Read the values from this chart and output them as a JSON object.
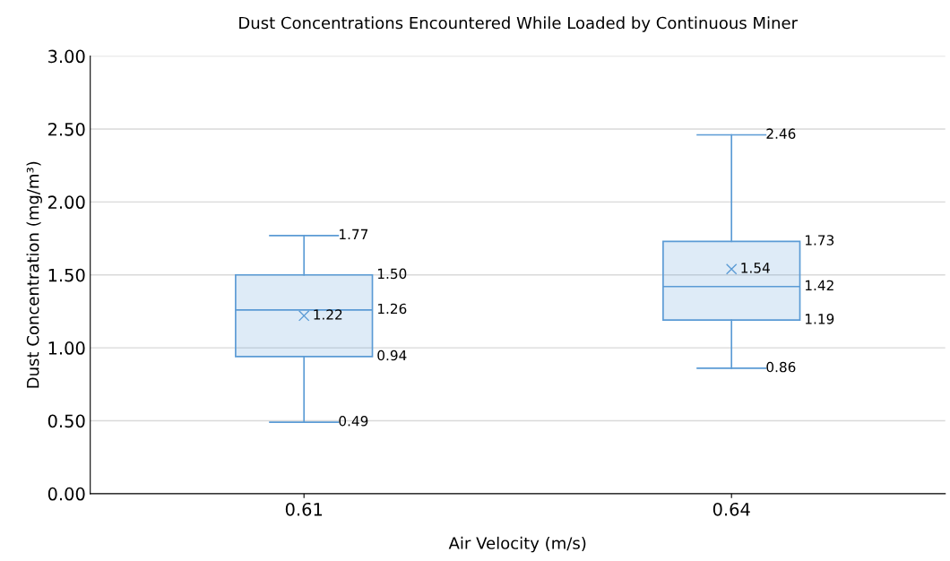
{
  "chart_data": {
    "type": "box",
    "title": "Dust Concentrations Encountered While Loaded by Continuous Miner",
    "xlabel": "Air Velocity (m/s)",
    "ylabel": "Dust Concentration (mg/m³)",
    "categories": [
      "0.61",
      "0.64"
    ],
    "boxes": [
      {
        "low": 0.49,
        "q1": 0.94,
        "median": 1.26,
        "q3": 1.5,
        "high": 1.77,
        "mean": 1.22
      },
      {
        "low": 0.86,
        "q1": 1.19,
        "median": 1.42,
        "q3": 1.73,
        "high": 2.46,
        "mean": 1.54
      }
    ],
    "color": "#5b9bd5",
    "ylim": [
      0,
      3
    ],
    "yticks": [
      {
        "value": 0,
        "label": "0.00"
      },
      {
        "value": 0.5,
        "label": "0.50"
      },
      {
        "value": 1,
        "label": "1.00"
      },
      {
        "value": 1.5,
        "label": "1.50"
      },
      {
        "value": 2,
        "label": "2.00"
      },
      {
        "value": 2.5,
        "label": "2.50"
      },
      {
        "value": 3,
        "label": "3.00"
      }
    ],
    "grid": "y",
    "marker": "cross",
    "annotations": [
      {
        "text": "0.49",
        "x": "0.61",
        "y": 0.49
      },
      "0.94",
      "1.26",
      "1.50",
      {
        "text": "1.77",
        "x": "0.61",
        "y": 1.77
      },
      "1.22",
      {
        "text": "0.86",
        "x": "0.64",
        "y": 0.86
      },
      "1.19",
      "1.42",
      "1.73",
      {
        "text": "2.46",
        "x": "0.64",
        "y": 2.46
      },
      "1.54"
    ]
  }
}
